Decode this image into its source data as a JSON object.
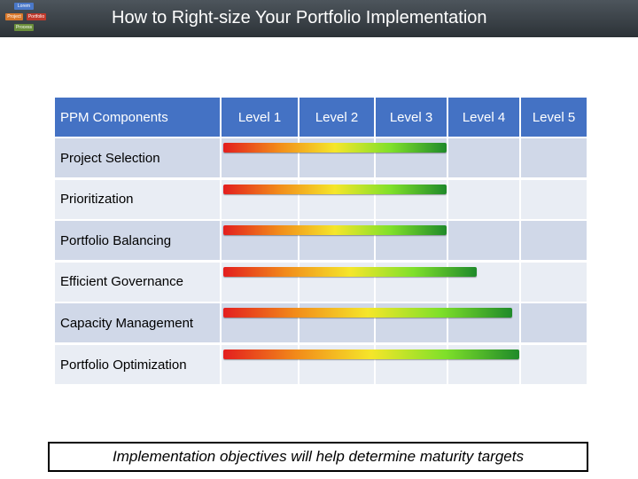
{
  "title": "How to Right-size Your Portfolio Implementation",
  "logo": {
    "items": [
      "Lorem",
      "Project",
      "Portfolio",
      "Process"
    ]
  },
  "table": {
    "headers": [
      "PPM Components",
      "Level 1",
      "Level 2",
      "Level 3",
      "Level 4",
      "Level 5"
    ],
    "rows": [
      {
        "label": "Project Selection",
        "level_reached": 3.0
      },
      {
        "label": "Prioritization",
        "level_reached": 3.0
      },
      {
        "label": "Portfolio Balancing",
        "level_reached": 3.0
      },
      {
        "label": "Efficient Governance",
        "level_reached": 3.4
      },
      {
        "label": "Capacity Management",
        "level_reached": 3.9
      },
      {
        "label": "Portfolio Optimization",
        "level_reached": 4.0
      }
    ]
  },
  "footer": "Implementation objectives will help determine maturity targets"
}
